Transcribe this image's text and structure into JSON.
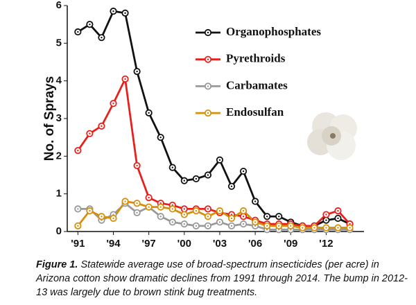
{
  "chart_data": {
    "type": "line",
    "y_label": "No. of Sprays",
    "x": [
      1991,
      1992,
      1993,
      1994,
      1995,
      1996,
      1997,
      1998,
      1999,
      2000,
      2001,
      2002,
      2003,
      2004,
      2005,
      2006,
      2007,
      2008,
      2009,
      2010,
      2011,
      2012,
      2013,
      2014
    ],
    "series": [
      {
        "name": "Organophosphates",
        "color": "#111111",
        "values": [
          5.3,
          5.5,
          5.15,
          5.85,
          5.8,
          4.25,
          3.15,
          2.5,
          1.7,
          1.35,
          1.4,
          1.5,
          1.9,
          1.2,
          1.6,
          0.8,
          0.4,
          0.4,
          0.25,
          0.15,
          0.15,
          0.3,
          0.35,
          0.2
        ]
      },
      {
        "name": "Pyrethroids",
        "color": "#e8201c",
        "values": [
          2.15,
          2.6,
          2.8,
          3.4,
          4.05,
          1.75,
          0.9,
          0.75,
          0.7,
          0.6,
          0.6,
          0.6,
          0.5,
          0.45,
          0.4,
          0.3,
          0.2,
          0.2,
          0.2,
          0.15,
          0.15,
          0.45,
          0.55,
          0.2
        ]
      },
      {
        "name": "Carbamates",
        "color": "#999999",
        "values": [
          0.6,
          0.6,
          0.3,
          0.45,
          0.75,
          0.5,
          0.65,
          0.4,
          0.25,
          0.2,
          0.15,
          0.15,
          0.25,
          0.15,
          0.2,
          0.15,
          0.05,
          0.05,
          0.05,
          0.05,
          0.05,
          0.05,
          0.05,
          0.05
        ]
      },
      {
        "name": "Endosulfan",
        "color": "#d4900c",
        "values": [
          0.15,
          0.55,
          0.4,
          0.35,
          0.8,
          0.75,
          0.65,
          0.65,
          0.6,
          0.45,
          0.55,
          0.4,
          0.55,
          0.35,
          0.55,
          0.25,
          0.15,
          0.15,
          0.15,
          0.1,
          0.1,
          0.1,
          0.1,
          0.1
        ]
      }
    ],
    "xlim": [
      1990.1,
      2015.2
    ],
    "xticks": [
      {
        "value": 1991,
        "label": "'91"
      },
      {
        "value": 1994,
        "label": "'94"
      },
      {
        "value": 1997,
        "label": "'97"
      },
      {
        "value": 2000,
        "label": "'00"
      },
      {
        "value": 2003,
        "label": "'03"
      },
      {
        "value": 2006,
        "label": "'06"
      },
      {
        "value": 2009,
        "label": "'09"
      },
      {
        "value": 2012,
        "label": "'12"
      }
    ],
    "ylim": [
      0,
      6
    ],
    "yticks": [
      0,
      1,
      2,
      3,
      4,
      5,
      6
    ],
    "grid": false
  },
  "caption": {
    "label": "Figure 1.",
    "text": "Statewide average use of broad-spectrum insecticides (per acre) in Arizona cotton show dramatic declines from 1991 through 2014. The bump in 2012-13 was largely due to brown stink bug treatments."
  }
}
